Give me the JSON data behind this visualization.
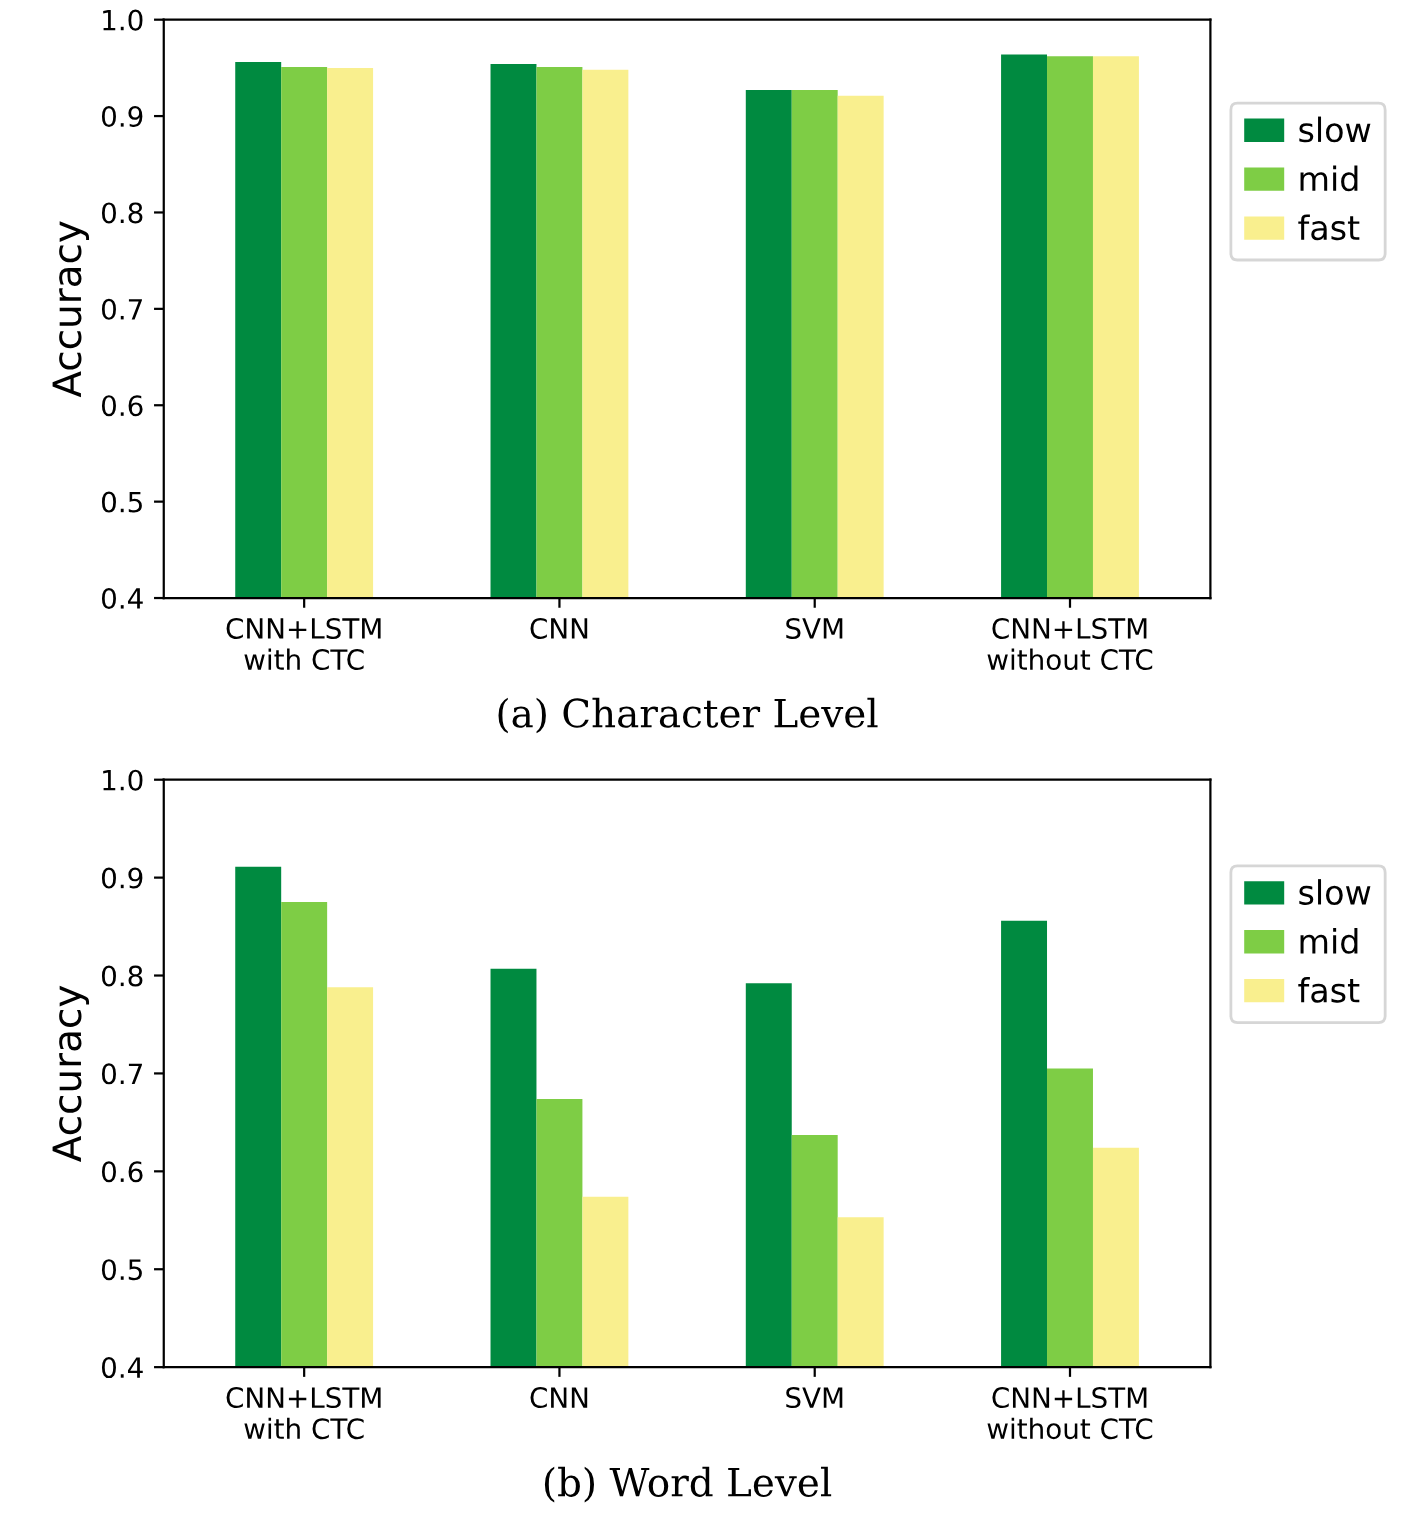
{
  "chart_data": [
    {
      "type": "bar",
      "xlabel": "(a) Character Level",
      "ylabel": "Accuracy",
      "categories": [
        "CNN+LSTM\nwith CTC",
        "CNN",
        "SVM",
        "CNN+LSTM\nwithout CTC"
      ],
      "series": [
        {
          "name": "slow",
          "color": "#008a40",
          "values": [
            0.956,
            0.954,
            0.927,
            0.964
          ]
        },
        {
          "name": "mid",
          "color": "#7ecd45",
          "values": [
            0.951,
            0.951,
            0.927,
            0.962
          ]
        },
        {
          "name": "fast",
          "color": "#f9ef8e",
          "values": [
            0.95,
            0.948,
            0.921,
            0.962
          ]
        }
      ],
      "ylim": [
        0.4,
        1.0
      ],
      "yticks": [
        {
          "value": 0.4,
          "label": "0.4"
        },
        {
          "value": 0.5,
          "label": "0.5"
        },
        {
          "value": 0.6,
          "label": "0.6"
        },
        {
          "value": 0.7,
          "label": "0.7"
        },
        {
          "value": 0.8,
          "label": "0.8"
        },
        {
          "value": 0.9,
          "label": "0.9"
        },
        {
          "value": 1.0,
          "label": "1.0"
        }
      ],
      "legend": "right",
      "grid": false
    },
    {
      "type": "bar",
      "xlabel": "(b) Word Level",
      "ylabel": "Accuracy",
      "categories": [
        "CNN+LSTM\nwith CTC",
        "CNN",
        "SVM",
        "CNN+LSTM\nwithout CTC"
      ],
      "series": [
        {
          "name": "slow",
          "color": "#008a40",
          "values": [
            0.911,
            0.807,
            0.792,
            0.856
          ]
        },
        {
          "name": "mid",
          "color": "#7ecd45",
          "values": [
            0.875,
            0.674,
            0.637,
            0.705
          ]
        },
        {
          "name": "fast",
          "color": "#f9ef8e",
          "values": [
            0.788,
            0.574,
            0.553,
            0.624
          ]
        }
      ],
      "ylim": [
        0.4,
        1.0
      ],
      "yticks": [
        {
          "value": 0.4,
          "label": "0.4"
        },
        {
          "value": 0.5,
          "label": "0.5"
        },
        {
          "value": 0.6,
          "label": "0.6"
        },
        {
          "value": 0.7,
          "label": "0.7"
        },
        {
          "value": 0.8,
          "label": "0.8"
        },
        {
          "value": 0.9,
          "label": "0.9"
        },
        {
          "value": 1.0,
          "label": "1.0"
        }
      ],
      "legend": "right",
      "grid": false
    }
  ]
}
